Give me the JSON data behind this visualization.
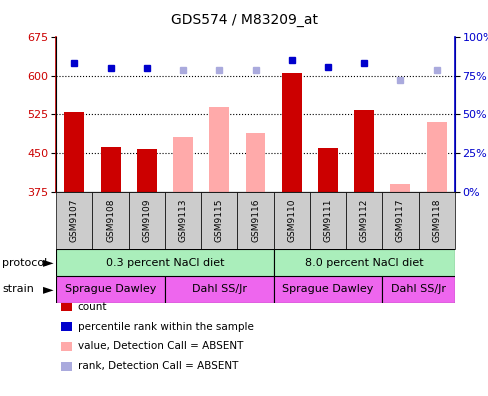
{
  "title": "GDS574 / M83209_at",
  "samples": [
    "GSM9107",
    "GSM9108",
    "GSM9109",
    "GSM9113",
    "GSM9115",
    "GSM9116",
    "GSM9110",
    "GSM9111",
    "GSM9112",
    "GSM9117",
    "GSM9118"
  ],
  "count_present": [
    530,
    462,
    458,
    null,
    null,
    null,
    605,
    460,
    533,
    null,
    null
  ],
  "count_absent": [
    null,
    null,
    null,
    482,
    540,
    488,
    null,
    null,
    null,
    390,
    510
  ],
  "rank_present": [
    83,
    80,
    80,
    null,
    null,
    null,
    85,
    81,
    83,
    null,
    null
  ],
  "rank_absent": [
    null,
    null,
    null,
    79,
    79,
    79,
    null,
    null,
    null,
    72,
    79
  ],
  "ylim_left": [
    375,
    675
  ],
  "ylim_right": [
    0,
    100
  ],
  "yticks_left": [
    375,
    450,
    525,
    600,
    675
  ],
  "yticks_right": [
    0,
    25,
    50,
    75,
    100
  ],
  "ytick_right_labels": [
    "0%",
    "25%",
    "50%",
    "75%",
    "100%"
  ],
  "color_present_bar": "#cc0000",
  "color_absent_bar": "#ffaaaa",
  "color_present_rank": "#0000cc",
  "color_absent_rank": "#aaaadd",
  "protocol_labels": [
    "0.3 percent NaCl diet",
    "8.0 percent NaCl diet"
  ],
  "protocol_col_spans": [
    6,
    5
  ],
  "protocol_color": "#aaeebb",
  "strain_labels": [
    "Sprague Dawley",
    "Dahl SS/Jr",
    "Sprague Dawley",
    "Dahl SS/Jr"
  ],
  "strain_col_spans": [
    3,
    3,
    3,
    2
  ],
  "strain_color": "#ee66ee",
  "legend_labels": [
    "count",
    "percentile rank within the sample",
    "value, Detection Call = ABSENT",
    "rank, Detection Call = ABSENT"
  ],
  "legend_colors": [
    "#cc0000",
    "#0000cc",
    "#ffaaaa",
    "#aaaadd"
  ],
  "bar_width": 0.55,
  "background_color": "#ffffff"
}
